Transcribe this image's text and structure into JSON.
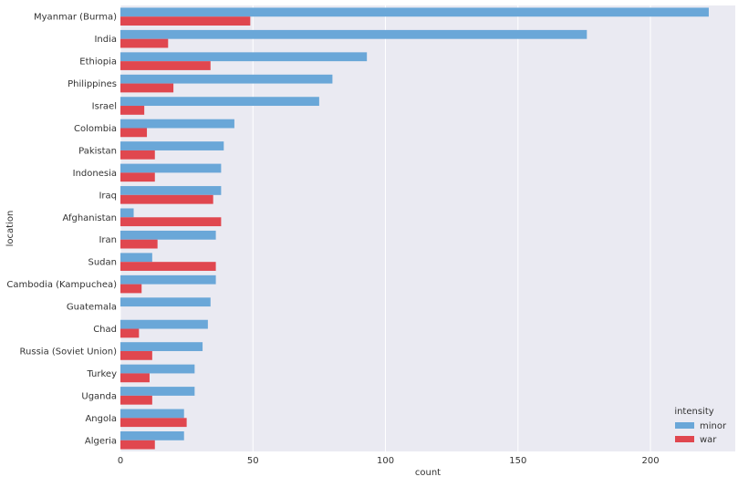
{
  "chart_data": {
    "type": "bar",
    "orientation": "horizontal",
    "xlabel": "count",
    "ylabel": "location",
    "xlim": [
      0,
      232
    ],
    "xticks": [
      0,
      50,
      100,
      150,
      200
    ],
    "grid": true,
    "legend_placement": "bottom-right",
    "legend_title": "intensity",
    "categories": [
      "Myanmar (Burma)",
      "India",
      "Ethiopia",
      "Philippines",
      "Israel",
      "Colombia",
      "Pakistan",
      "Indonesia",
      "Iraq",
      "Afghanistan",
      "Iran",
      "Sudan",
      "Cambodia (Kampuchea)",
      "Guatemala",
      "Chad",
      "Russia (Soviet Union)",
      "Turkey",
      "Uganda",
      "Angola",
      "Algeria"
    ],
    "series": [
      {
        "name": "minor",
        "color": "#6aa7d8",
        "values": [
          222,
          176,
          93,
          80,
          75,
          43,
          39,
          38,
          38,
          5,
          36,
          12,
          36,
          34,
          33,
          31,
          28,
          28,
          24,
          24
        ]
      },
      {
        "name": "war",
        "color": "#e0474f",
        "values": [
          49,
          18,
          34,
          20,
          9,
          10,
          13,
          13,
          35,
          38,
          14,
          36,
          8,
          0,
          7,
          12,
          11,
          12,
          25,
          13
        ]
      }
    ],
    "colors": {
      "plot_background": "#eaeaf2",
      "grid": "#ffffff"
    }
  }
}
